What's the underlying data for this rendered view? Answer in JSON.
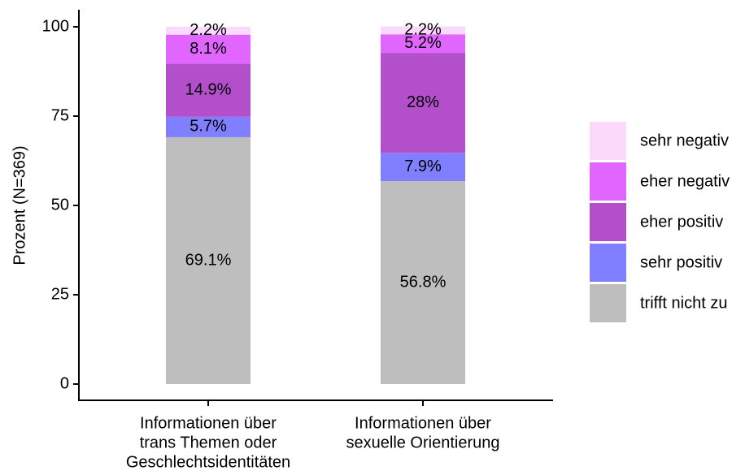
{
  "chart_data": {
    "type": "stacked_bar",
    "categories": [
      [
        "Informationen über",
        "trans Themen oder",
        "Geschlechtsidentitäten"
      ],
      [
        "Informationen über",
        "sexuelle Orientierung"
      ]
    ],
    "y_label": "Prozent (N=369)",
    "ylim": [
      0,
      100
    ],
    "yticks": [
      0,
      25,
      50,
      75,
      100
    ],
    "series": [
      {
        "name": "trifft nicht zu",
        "color": "#bebebe",
        "values": [
          69.1,
          56.8
        ],
        "value_labels": [
          "69.1%",
          "56.8%"
        ]
      },
      {
        "name": "sehr positiv",
        "color": "#7f7fff",
        "values": [
          5.7,
          7.9
        ],
        "value_labels": [
          "5.7%",
          "7.9%"
        ]
      },
      {
        "name": "eher positiv",
        "color": "#b44fcc",
        "values": [
          14.9,
          28
        ],
        "value_labels": [
          "14.9%",
          "28%"
        ]
      },
      {
        "name": "eher negativ",
        "color": "#e066ff",
        "values": [
          8.1,
          5.2
        ],
        "value_labels": [
          "8.1%",
          "5.2%"
        ]
      },
      {
        "name": "sehr negativ",
        "color": "#fbd9fb",
        "values": [
          2.2,
          2.2
        ],
        "value_labels": [
          "2.2%",
          "2.2%"
        ]
      }
    ]
  }
}
